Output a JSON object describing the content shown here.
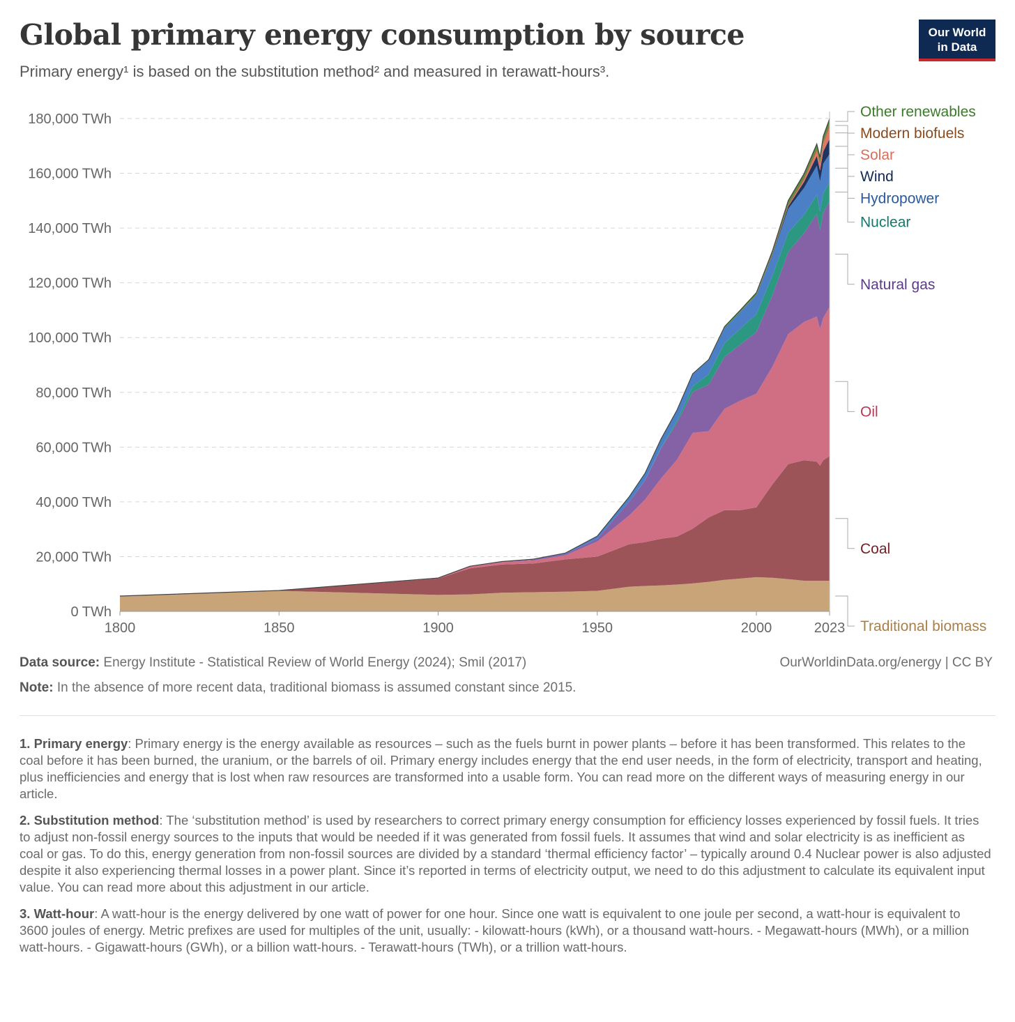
{
  "header": {
    "title": "Global primary energy consumption by source",
    "subtitle": "Primary energy¹ is based on the substitution method² and measured in terawatt-hours³.",
    "logo_line1": "Our World",
    "logo_line2": "in Data"
  },
  "chart_data": {
    "type": "area",
    "stacked": true,
    "x": [
      1800,
      1850,
      1900,
      1910,
      1920,
      1930,
      1940,
      1950,
      1960,
      1965,
      1970,
      1975,
      1980,
      1985,
      1990,
      1995,
      2000,
      2005,
      2010,
      2015,
      2019,
      2020,
      2021,
      2023
    ],
    "x_ticks": [
      1800,
      1850,
      1900,
      1950,
      2000,
      2023
    ],
    "y_ticks": [
      0,
      20000,
      40000,
      60000,
      80000,
      100000,
      120000,
      140000,
      160000,
      180000
    ],
    "y_tick_labels": [
      "0 TWh",
      "20,000 TWh",
      "40,000 TWh",
      "60,000 TWh",
      "80,000 TWh",
      "100,000 TWh",
      "120,000 TWh",
      "140,000 TWh",
      "160,000 TWh",
      "180,000 TWh"
    ],
    "xlim": [
      1800,
      2023
    ],
    "ylim": [
      0,
      180000
    ],
    "grid": "horizontal-dashed",
    "legend": "right-labels",
    "series": [
      {
        "name": "Traditional biomass",
        "color": "#c9a479",
        "label_color": "#a8804e",
        "values": [
          5500,
          7500,
          6000,
          6200,
          6800,
          7000,
          7200,
          7500,
          9000,
          9300,
          9500,
          9800,
          10200,
          10800,
          11500,
          12000,
          12500,
          12300,
          11800,
          11200,
          11200,
          11200,
          11200,
          11200
        ]
      },
      {
        "name": "Coal",
        "color": "#9c5459",
        "label_color": "#6f1f25",
        "values": [
          100,
          150,
          6000,
          9500,
          10300,
          10500,
          11800,
          12500,
          15500,
          16000,
          17000,
          17500,
          20000,
          23500,
          25500,
          25000,
          25500,
          34000,
          42000,
          44000,
          43500,
          42000,
          44000,
          45500
        ]
      },
      {
        "name": "Oil",
        "color": "#d06f83",
        "label_color": "#b53b56",
        "values": [
          0,
          0,
          200,
          700,
          900,
          1100,
          1500,
          5500,
          10500,
          15500,
          22000,
          28000,
          35000,
          31500,
          37000,
          40000,
          41500,
          43000,
          47500,
          50500,
          53000,
          50000,
          52000,
          54500
        ]
      },
      {
        "name": "Natural gas",
        "color": "#8561a5",
        "label_color": "#5b3a87",
        "values": [
          0,
          0,
          0,
          100,
          200,
          300,
          500,
          1000,
          5000,
          7000,
          11000,
          13500,
          15000,
          17000,
          19000,
          20500,
          22500,
          26000,
          30000,
          32500,
          37500,
          36000,
          38500,
          38500
        ]
      },
      {
        "name": "Nuclear",
        "color": "#2c9882",
        "label_color": "#16776a",
        "values": [
          0,
          0,
          0,
          0,
          0,
          0,
          0,
          0,
          0,
          100,
          200,
          800,
          2000,
          3800,
          5000,
          5800,
          6500,
          7200,
          7000,
          6700,
          7000,
          6800,
          7000,
          6900
        ]
      },
      {
        "name": "Hydropower",
        "color": "#4c80c6",
        "label_color": "#2a5a9a",
        "values": [
          0,
          0,
          0,
          0,
          0,
          200,
          300,
          1000,
          1800,
          2500,
          3200,
          3800,
          4500,
          5000,
          5500,
          6200,
          6900,
          7400,
          8700,
          9800,
          10600,
          11000,
          10800,
          10500
        ]
      },
      {
        "name": "Wind",
        "color": "#1e3561",
        "label_color": "#0e2a52",
        "values": [
          0,
          0,
          0,
          0,
          0,
          0,
          0,
          0,
          0,
          0,
          0,
          0,
          0,
          0,
          0,
          0,
          100,
          300,
          900,
          2200,
          3500,
          4000,
          4400,
          5500
        ]
      },
      {
        "name": "Solar",
        "color": "#e07762",
        "label_color": "#d96f5b",
        "values": [
          0,
          0,
          0,
          0,
          0,
          0,
          0,
          0,
          0,
          0,
          0,
          0,
          0,
          0,
          0,
          0,
          0,
          0,
          100,
          700,
          1800,
          2200,
          2800,
          4300
        ]
      },
      {
        "name": "Modern biofuels",
        "color": "#a56a3f",
        "label_color": "#8a4a1b",
        "values": [
          0,
          0,
          0,
          0,
          0,
          0,
          0,
          0,
          0,
          0,
          0,
          0,
          0,
          0,
          0,
          0,
          200,
          400,
          800,
          900,
          1000,
          950,
          1000,
          1100
        ]
      },
      {
        "name": "Other renewables",
        "color": "#4e8a3a",
        "label_color": "#3c7a2b",
        "values": [
          0,
          0,
          0,
          0,
          0,
          0,
          0,
          0,
          0,
          0,
          0,
          0,
          100,
          300,
          500,
          600,
          700,
          900,
          1200,
          1400,
          1600,
          1700,
          1800,
          1900
        ]
      }
    ]
  },
  "footer": {
    "source_label": "Data source:",
    "source_text": "Energy Institute - Statistical Review of World Energy (2024); Smil (2017)",
    "credit": "OurWorldinData.org/energy | CC BY",
    "note_label": "Note:",
    "note_text": "In the absence of more recent data, traditional biomass is assumed constant since 2015."
  },
  "footnotes": [
    {
      "label": "1. Primary energy",
      "text": ": Primary energy is the energy available as resources – such as the fuels burnt in power plants – before it has been transformed. This relates to the coal before it has been burned, the uranium, or the barrels of oil. Primary energy includes energy that the end user needs, in the form of electricity, transport and heating, plus inefficiencies and energy that is lost when raw resources are transformed into a usable form. You can read more on the different ways of measuring energy in our article."
    },
    {
      "label": "2. Substitution method",
      "text": ": The ‘substitution method’ is used by researchers to correct primary energy consumption for efficiency losses experienced by fossil fuels. It tries to adjust non-fossil energy sources to the inputs that would be needed if it was generated from fossil fuels. It assumes that wind and solar electricity is as inefficient as coal or gas. To do this, energy generation from non-fossil sources are divided by a standard ‘thermal efficiency factor’ – typically around 0.4 Nuclear power is also adjusted despite it also experiencing thermal losses in a power plant. Since it’s reported in terms of electricity output, we need to do this adjustment to calculate its equivalent input value. You can read more about this adjustment in our article."
    },
    {
      "label": "3. Watt-hour",
      "text": ": A watt-hour is the energy delivered by one watt of power for one hour. Since one watt is equivalent to one joule per second, a watt-hour is equivalent to 3600 joules of energy. Metric prefixes are used for multiples of the unit, usually: - kilowatt-hours (kWh), or a thousand watt-hours. - Megawatt-hours (MWh), or a million watt-hours. - Gigawatt-hours (GWh), or a billion watt-hours. - Terawatt-hours (TWh), or a trillion watt-hours."
    }
  ]
}
